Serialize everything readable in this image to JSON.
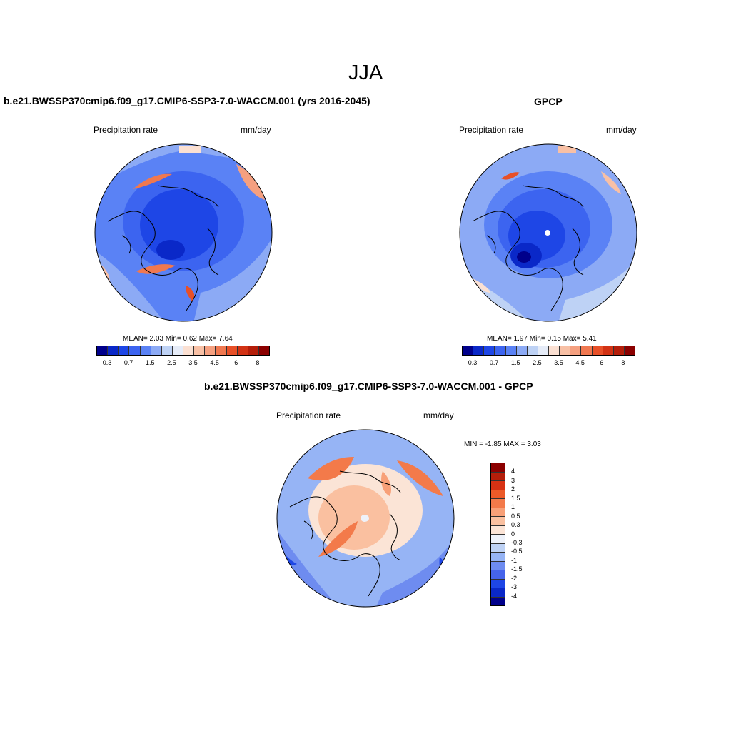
{
  "season": "JJA",
  "panels": {
    "model": {
      "title": "b.e21.BWSSP370cmip6.f09_g17.CMIP6-SSP3-7.0-WACCM.001 (yrs 2016-2045)",
      "variable": "Precipitation rate",
      "units": "mm/day",
      "stats": "MEAN=   2.03  Min=   0.62  Max=   7.64"
    },
    "obs": {
      "title": "GPCP",
      "variable": "Precipitation rate",
      "units": "mm/day",
      "stats": "MEAN=   1.97  Min=   0.15  Max=   5.41"
    },
    "diff": {
      "title": "b.e21.BWSSP370cmip6.f09_g17.CMIP6-SSP3-7.0-WACCM.001 - GPCP",
      "variable": "Precipitation rate",
      "units": "mm/day",
      "stats": "MIN =  -1.85 MAX =   3.03"
    }
  },
  "colorbars": {
    "precip_ticks": [
      "0.3",
      "0.7",
      "1.5",
      "2.5",
      "3.5",
      "4.5",
      "6",
      "8"
    ],
    "precip_colors": [
      "#00008b",
      "#0a28c8",
      "#1e46e6",
      "#3c64f0",
      "#5a82f5",
      "#8caaf5",
      "#bed2f5",
      "#e6ecf8",
      "#fbe0d2",
      "#f8c0a5",
      "#f5a080",
      "#f07850",
      "#e85028",
      "#d23214",
      "#b41e0a",
      "#8b0000"
    ],
    "diff_ticks": [
      "4",
      "3",
      "2",
      "1.5",
      "1",
      "0.5",
      "0.3",
      "0",
      "-0.3",
      "-0.5",
      "-1",
      "-1.5",
      "-2",
      "-3",
      "-4"
    ],
    "diff_colors": [
      "#8b0000",
      "#b41e0a",
      "#d73214",
      "#ec5a28",
      "#f37a4a",
      "#f8a078",
      "#fac0a0",
      "#fbe4d6",
      "#eef2fa",
      "#bed2f5",
      "#96b4f5",
      "#6e8cf0",
      "#4664eb",
      "#1e46e6",
      "#0a28c8",
      "#00008b"
    ]
  },
  "colors": {
    "wet": "#1e46e6",
    "dry": "#f07850",
    "neutral": "#e6ecf8",
    "coastline": "#000000"
  }
}
